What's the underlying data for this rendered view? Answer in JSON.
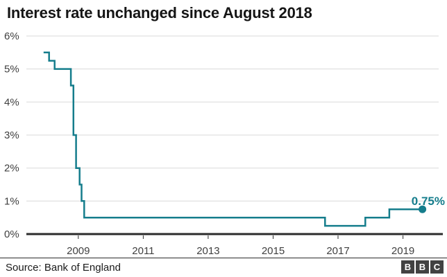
{
  "title": "Interest rate unchanged since August 2018",
  "chart_data": {
    "type": "line",
    "title": "Interest rate unchanged since August 2018",
    "xlabel": "",
    "ylabel": "",
    "grid": true,
    "legend": "none",
    "ylim": [
      0,
      6
    ],
    "xlim": [
      2007.4,
      2020.1
    ],
    "x_ticks": [
      "2009",
      "2011",
      "2013",
      "2015",
      "2017",
      "2019"
    ],
    "x_tick_values": [
      2009,
      2011,
      2013,
      2015,
      2017,
      2019
    ],
    "y_ticks": [
      "6%",
      "5%",
      "4%",
      "3%",
      "2%",
      "1%",
      "0%"
    ],
    "y_tick_values": [
      6,
      5,
      4,
      3,
      2,
      1,
      0
    ],
    "series": [
      {
        "name": "Interest rate",
        "step": "after",
        "points": [
          {
            "x": 2007.93,
            "y": 5.5
          },
          {
            "x": 2008.1,
            "y": 5.25
          },
          {
            "x": 2008.27,
            "y": 5.0
          },
          {
            "x": 2008.77,
            "y": 4.5
          },
          {
            "x": 2008.85,
            "y": 3.0
          },
          {
            "x": 2008.93,
            "y": 2.0
          },
          {
            "x": 2009.04,
            "y": 1.5
          },
          {
            "x": 2009.1,
            "y": 1.0
          },
          {
            "x": 2009.18,
            "y": 0.5
          },
          {
            "x": 2016.6,
            "y": 0.25
          },
          {
            "x": 2017.84,
            "y": 0.5
          },
          {
            "x": 2018.58,
            "y": 0.75
          },
          {
            "x": 2019.6,
            "y": 0.75
          }
        ]
      }
    ],
    "annotation": {
      "text": "0.75%"
    },
    "colors": {
      "line": "#157d8c",
      "annotation": "#157d8c",
      "grid": "#d9d9d9",
      "axis": "#2b2b2b",
      "tick_label": "#3f3f3f"
    }
  },
  "footer": {
    "source": "Source: Bank of England",
    "logo_letters": [
      "B",
      "B",
      "C"
    ]
  }
}
